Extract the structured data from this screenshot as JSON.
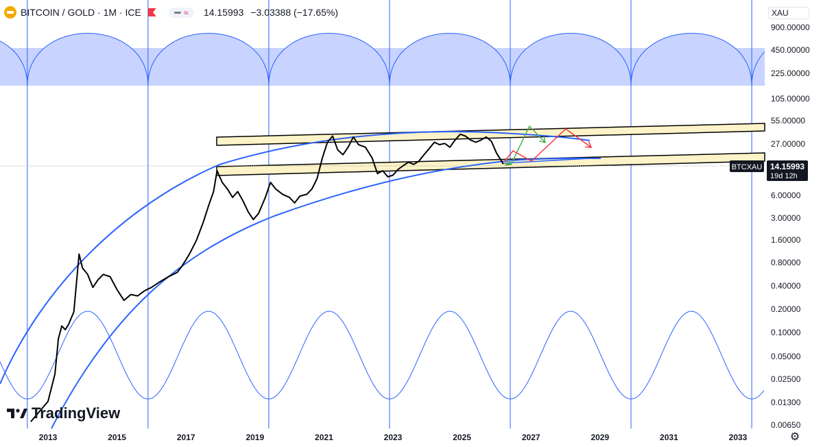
{
  "header": {
    "symbol_title": "BITCOIN / GOLD · 1M · ICE",
    "price": "14.15993",
    "change": "−3.03388 (−17.65%)"
  },
  "currency_label": "XAU",
  "logo_text": "TradingView",
  "price_tag": {
    "symbol": "BTCXAU",
    "value": "14.15993",
    "countdown": "19d 12h"
  },
  "colors": {
    "price_line": "#000000",
    "band_fill": "#fdf3c8",
    "curve": "#2962ff",
    "cycle": "#2962ff",
    "cycle_fill": "#c8d4ff",
    "arrow_green": "#4caf50",
    "arrow_red": "#f23645"
  },
  "chart_data": {
    "type": "line",
    "series_name": "BTCXAU",
    "y_scale": "log",
    "y_ticks": [
      "900.00000",
      "450.00000",
      "225.00000",
      "105.00000",
      "55.00000",
      "27.00000",
      "6.00000",
      "3.00000",
      "1.60000",
      "0.80000",
      "0.40000",
      "0.20000",
      "0.10000",
      "0.05000",
      "0.02500",
      "0.01300",
      "0.00650"
    ],
    "x_ticks": [
      "2013",
      "2015",
      "2017",
      "2019",
      "2021",
      "2023",
      "2025",
      "2027",
      "2029",
      "2031",
      "2033"
    ],
    "cycle_years": [
      2012.4,
      2015.9,
      2019.4,
      2022.9,
      2026.4,
      2029.9,
      2033.4
    ],
    "price_points": [
      [
        2012.5,
        0.0045
      ],
      [
        2013.0,
        0.0085
      ],
      [
        2013.2,
        0.02
      ],
      [
        2013.3,
        0.06
      ],
      [
        2013.4,
        0.09
      ],
      [
        2013.5,
        0.08
      ],
      [
        2013.6,
        0.095
      ],
      [
        2013.75,
        0.14
      ],
      [
        2013.9,
        0.85
      ],
      [
        2014.0,
        0.55
      ],
      [
        2014.15,
        0.45
      ],
      [
        2014.3,
        0.3
      ],
      [
        2014.45,
        0.38
      ],
      [
        2014.6,
        0.45
      ],
      [
        2014.8,
        0.42
      ],
      [
        2015.0,
        0.28
      ],
      [
        2015.2,
        0.2
      ],
      [
        2015.4,
        0.24
      ],
      [
        2015.6,
        0.23
      ],
      [
        2015.8,
        0.27
      ],
      [
        2016.0,
        0.3
      ],
      [
        2016.25,
        0.36
      ],
      [
        2016.5,
        0.42
      ],
      [
        2016.75,
        0.48
      ],
      [
        2016.9,
        0.6
      ],
      [
        2017.1,
        0.85
      ],
      [
        2017.3,
        1.3
      ],
      [
        2017.5,
        2.3
      ],
      [
        2017.65,
        3.8
      ],
      [
        2017.8,
        6.0
      ],
      [
        2017.9,
        11.5
      ],
      [
        2018.05,
        8.0
      ],
      [
        2018.2,
        6.5
      ],
      [
        2018.35,
        5.0
      ],
      [
        2018.5,
        6.0
      ],
      [
        2018.65,
        4.5
      ],
      [
        2018.8,
        3.2
      ],
      [
        2018.95,
        2.5
      ],
      [
        2019.1,
        3.0
      ],
      [
        2019.3,
        5.0
      ],
      [
        2019.45,
        8.0
      ],
      [
        2019.6,
        6.5
      ],
      [
        2019.8,
        5.5
      ],
      [
        2020.0,
        5.0
      ],
      [
        2020.15,
        4.2
      ],
      [
        2020.3,
        5.2
      ],
      [
        2020.5,
        5.5
      ],
      [
        2020.65,
        6.5
      ],
      [
        2020.8,
        9.0
      ],
      [
        2020.95,
        17.0
      ],
      [
        2021.1,
        28.0
      ],
      [
        2021.25,
        34.0
      ],
      [
        2021.4,
        22.0
      ],
      [
        2021.55,
        19.0
      ],
      [
        2021.7,
        24.0
      ],
      [
        2021.85,
        33.0
      ],
      [
        2022.0,
        26.0
      ],
      [
        2022.2,
        24.0
      ],
      [
        2022.4,
        17.0
      ],
      [
        2022.55,
        10.5
      ],
      [
        2022.7,
        11.5
      ],
      [
        2022.85,
        9.5
      ],
      [
        2023.0,
        10.0
      ],
      [
        2023.15,
        12.0
      ],
      [
        2023.3,
        13.5
      ],
      [
        2023.45,
        15.0
      ],
      [
        2023.6,
        14.0
      ],
      [
        2023.75,
        15.5
      ],
      [
        2023.9,
        19.0
      ],
      [
        2024.05,
        23.0
      ],
      [
        2024.2,
        28.0
      ],
      [
        2024.35,
        26.0
      ],
      [
        2024.5,
        27.0
      ],
      [
        2024.65,
        24.0
      ],
      [
        2024.8,
        30.0
      ],
      [
        2024.95,
        36.0
      ],
      [
        2025.1,
        34.0
      ],
      [
        2025.25,
        30.0
      ],
      [
        2025.4,
        28.0
      ],
      [
        2025.55,
        30.0
      ],
      [
        2025.7,
        33.0
      ],
      [
        2025.85,
        29.0
      ],
      [
        2026.0,
        20.0
      ],
      [
        2026.2,
        14.15993
      ]
    ]
  }
}
